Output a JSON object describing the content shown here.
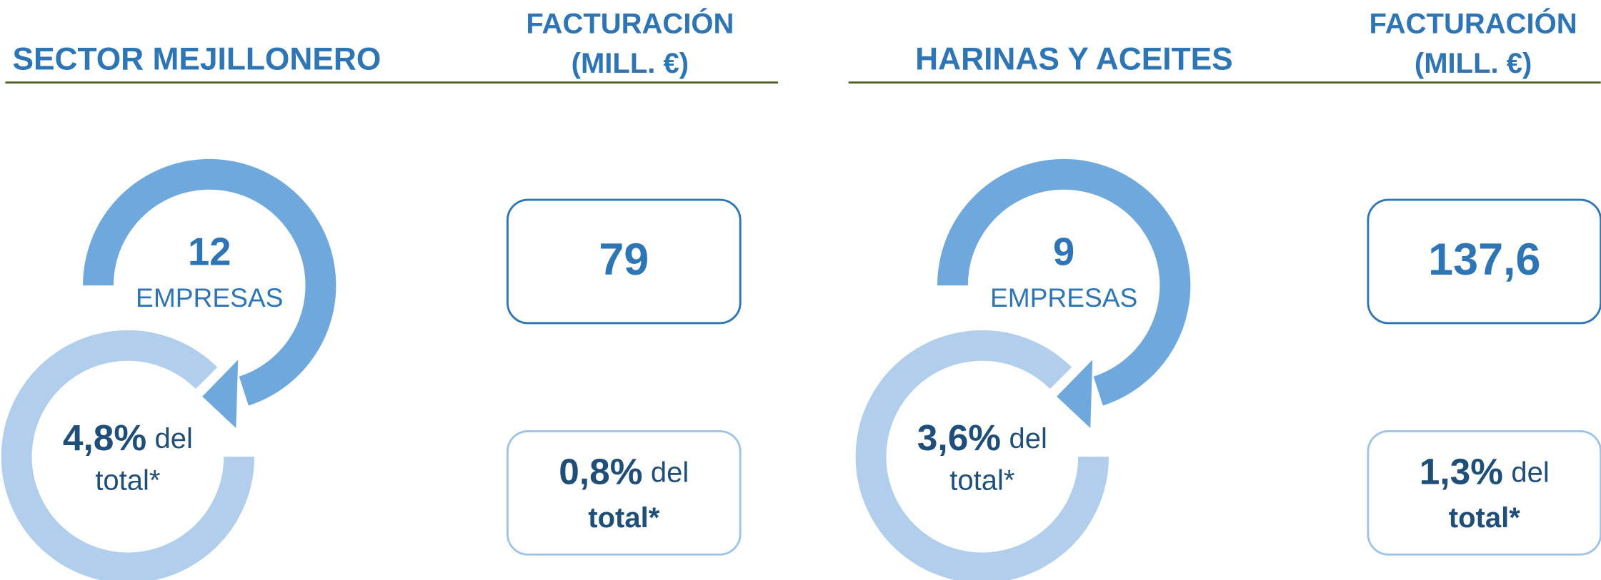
{
  "panels": [
    {
      "title": "SECTOR MEJILLONERO",
      "header": [
        "FACTURACIÓN",
        "(MILL. €)"
      ],
      "companies": {
        "count": "12",
        "label": "EMPRESAS",
        "share": "4,8%",
        "share_text": [
          "del",
          "total*"
        ]
      },
      "revenue": {
        "value": "79",
        "share": "0,8%",
        "share_text": [
          "del",
          "total*"
        ]
      }
    },
    {
      "title": "HARINAS Y ACEITES",
      "header": [
        "FACTURACIÓN",
        "(MILL. €)"
      ],
      "companies": {
        "count": "9",
        "label": "EMPRESAS",
        "share": "3,6%",
        "share_text": [
          "del",
          "total*"
        ]
      },
      "revenue": {
        "value": "137,6",
        "share": "1,3%",
        "share_text": [
          "del",
          "total*"
        ]
      }
    }
  ]
}
